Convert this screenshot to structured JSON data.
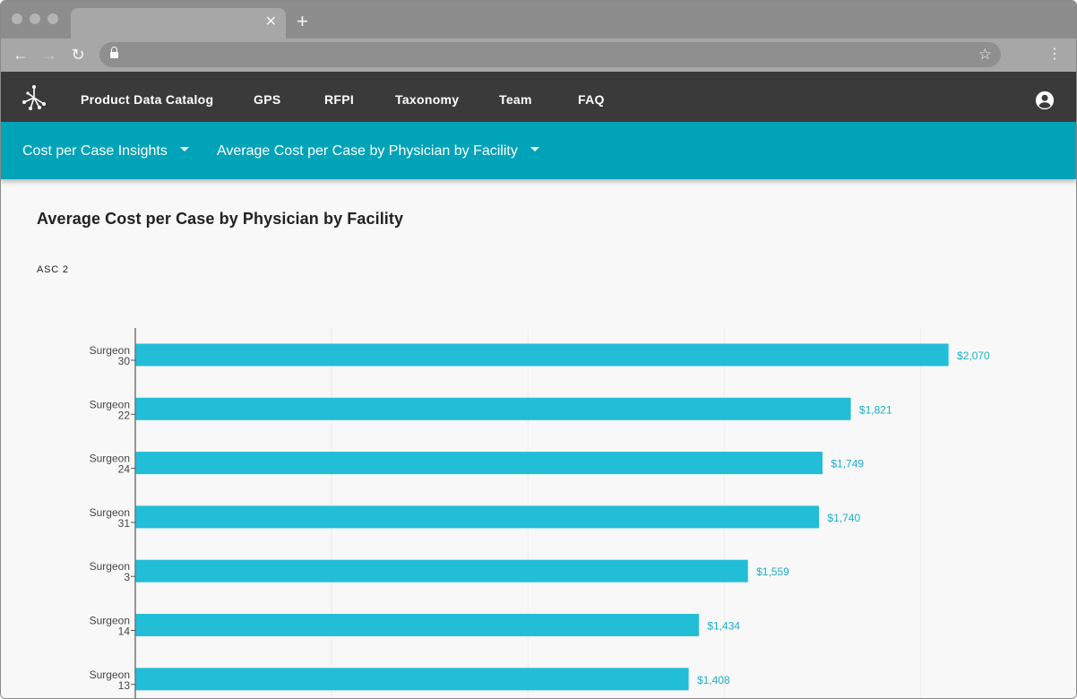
{
  "app": {
    "nav": [
      "Product Data Catalog",
      "GPS",
      "RFPI",
      "Taxonomy",
      "Team",
      "FAQ"
    ]
  },
  "subnav": {
    "first": "Cost per Case Insights",
    "second": "Average Cost per Case by Physician by Facility"
  },
  "page": {
    "title": "Average Cost per Case by Physician by Facility",
    "facility": "ASC 2"
  },
  "colors": {
    "bar": "#22bdd6",
    "label": "#1aafc8",
    "appbar": "#3a3a3a",
    "subbar": "#00a3b8"
  },
  "chart_data": {
    "type": "bar",
    "orientation": "horizontal",
    "categories": [
      "Surgeon 30",
      "Surgeon 22",
      "Surgeon 24",
      "Surgeon 31",
      "Surgeon 3",
      "Surgeon 14",
      "Surgeon 13"
    ],
    "category_lines": [
      [
        "Surgeon",
        "30"
      ],
      [
        "Surgeon",
        "22"
      ],
      [
        "Surgeon",
        "24"
      ],
      [
        "Surgeon",
        "31"
      ],
      [
        "Surgeon",
        "3"
      ],
      [
        "Surgeon",
        "14"
      ],
      [
        "Surgeon",
        "13"
      ]
    ],
    "values": [
      2070,
      1821,
      1749,
      1740,
      1559,
      1434,
      1408
    ],
    "value_labels": [
      "$2,070",
      "$1,821",
      "$1,749",
      "$1,740",
      "$1,559",
      "$1,434",
      "$1,408"
    ],
    "xlim": [
      0,
      2200
    ],
    "grid": true,
    "title": ""
  }
}
